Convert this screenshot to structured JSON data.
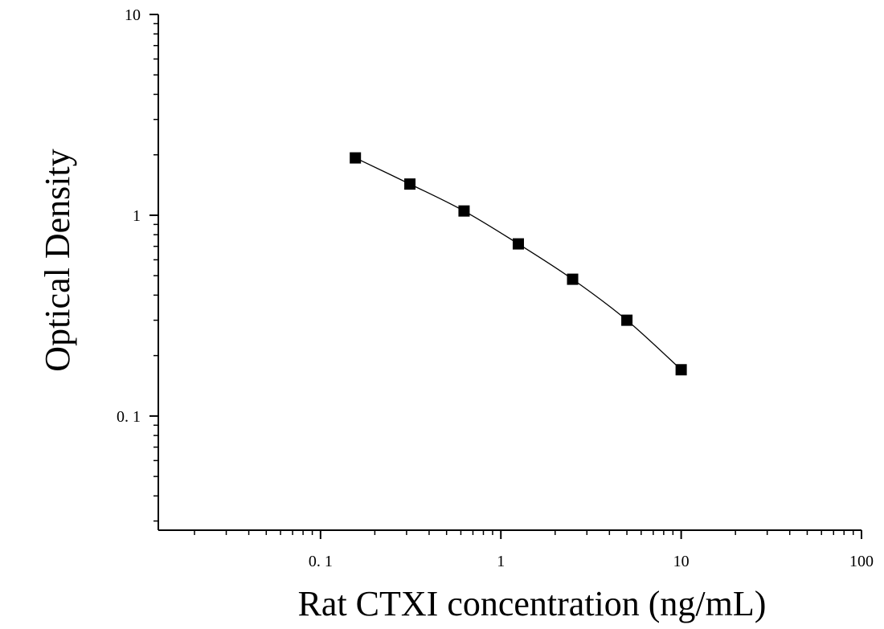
{
  "chart_data": {
    "type": "line",
    "title": "",
    "xlabel": "Rat CTXI concentration (ng/mL)",
    "ylabel": "Optical Density",
    "x_scale": "log",
    "y_scale": "log",
    "xlim": [
      0.0126,
      100
    ],
    "ylim": [
      0.027,
      10
    ],
    "x_tick_labels": [
      "0. 1",
      "1",
      "10",
      "100"
    ],
    "x_tick_values": [
      0.1,
      1,
      10,
      100
    ],
    "y_tick_labels": [
      "0. 1",
      "1",
      "10"
    ],
    "y_tick_values": [
      0.1,
      1,
      10
    ],
    "grid": false,
    "marker": "square",
    "colors": {
      "series": "#000000",
      "axis": "#000000"
    },
    "series": [
      {
        "x": [
          0.156,
          0.313,
          0.625,
          1.25,
          2.5,
          5,
          10
        ],
        "y": [
          1.93,
          1.43,
          1.05,
          0.72,
          0.48,
          0.3,
          0.17
        ]
      }
    ]
  }
}
